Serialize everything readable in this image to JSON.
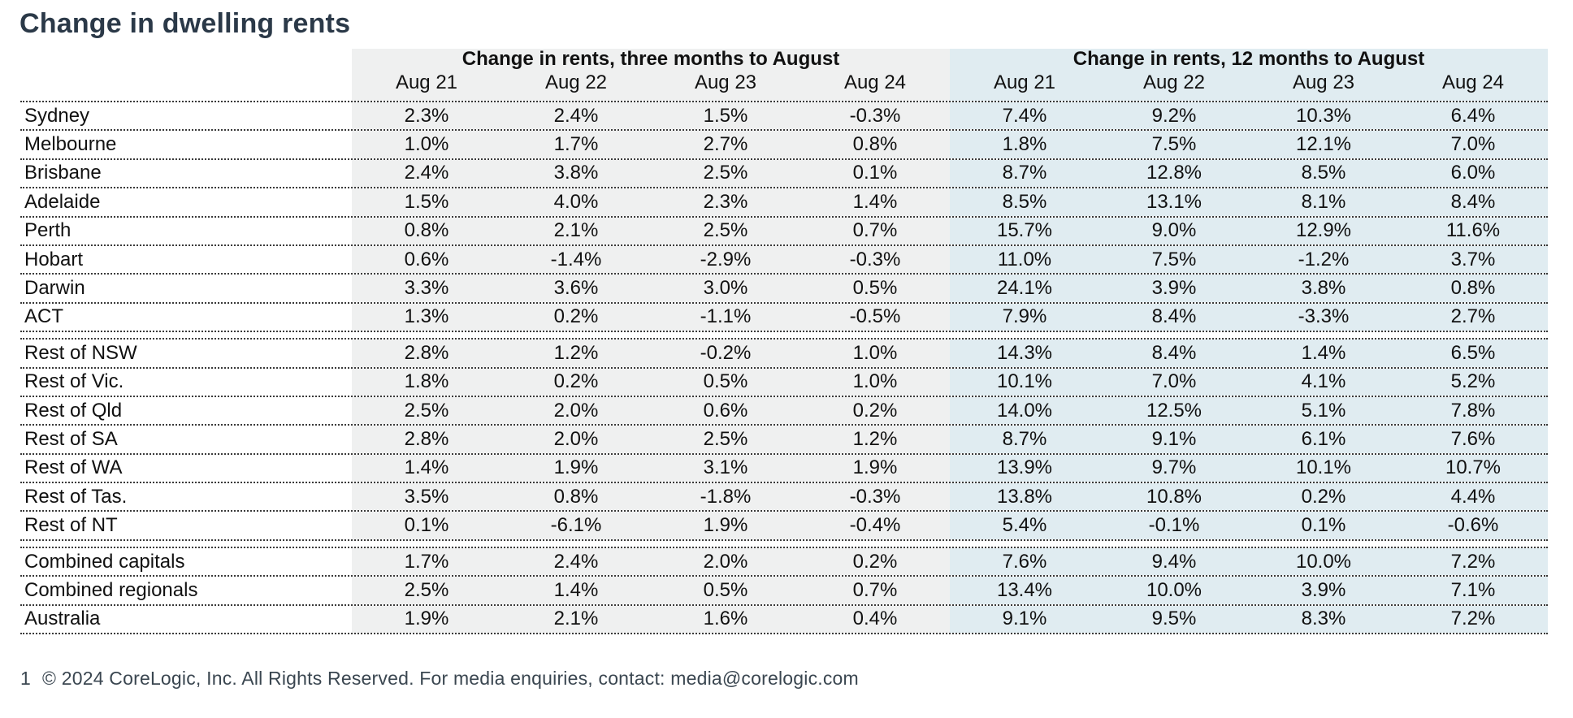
{
  "page": {
    "title": "Change in dwelling rents",
    "footer": {
      "page_number": "1",
      "copyright": "© 2024 CoreLogic, Inc. All Rights Reserved. For media enquiries, contact: media@corelogic.com"
    }
  },
  "colors": {
    "three_month_bg": "#EFF0F0",
    "twelve_month_bg": "#E0ECF1",
    "title_text": "#2B3948",
    "footer_text": "#3A4650"
  },
  "chart_data": {
    "type": "table",
    "title": "Change in dwelling rents",
    "column_groups": [
      {
        "label": "Change in rents, three months to August",
        "columns": [
          "Aug 21",
          "Aug 22",
          "Aug 23",
          "Aug 24"
        ]
      },
      {
        "label": "Change in rents, 12 months to August",
        "columns": [
          "Aug 21",
          "Aug 22",
          "Aug 23",
          "Aug 24"
        ]
      }
    ],
    "row_groups": [
      {
        "rows": [
          {
            "label": "Sydney",
            "values": [
              "2.3%",
              "2.4%",
              "1.5%",
              "-0.3%",
              "7.4%",
              "9.2%",
              "10.3%",
              "6.4%"
            ]
          },
          {
            "label": "Melbourne",
            "values": [
              "1.0%",
              "1.7%",
              "2.7%",
              "0.8%",
              "1.8%",
              "7.5%",
              "12.1%",
              "7.0%"
            ]
          },
          {
            "label": "Brisbane",
            "values": [
              "2.4%",
              "3.8%",
              "2.5%",
              "0.1%",
              "8.7%",
              "12.8%",
              "8.5%",
              "6.0%"
            ]
          },
          {
            "label": "Adelaide",
            "values": [
              "1.5%",
              "4.0%",
              "2.3%",
              "1.4%",
              "8.5%",
              "13.1%",
              "8.1%",
              "8.4%"
            ]
          },
          {
            "label": "Perth",
            "values": [
              "0.8%",
              "2.1%",
              "2.5%",
              "0.7%",
              "15.7%",
              "9.0%",
              "12.9%",
              "11.6%"
            ]
          },
          {
            "label": "Hobart",
            "values": [
              "0.6%",
              "-1.4%",
              "-2.9%",
              "-0.3%",
              "11.0%",
              "7.5%",
              "-1.2%",
              "3.7%"
            ]
          },
          {
            "label": "Darwin",
            "values": [
              "3.3%",
              "3.6%",
              "3.0%",
              "0.5%",
              "24.1%",
              "3.9%",
              "3.8%",
              "0.8%"
            ]
          },
          {
            "label": "ACT",
            "values": [
              "1.3%",
              "0.2%",
              "-1.1%",
              "-0.5%",
              "7.9%",
              "8.4%",
              "-3.3%",
              "2.7%"
            ]
          }
        ]
      },
      {
        "rows": [
          {
            "label": "Rest of NSW",
            "values": [
              "2.8%",
              "1.2%",
              "-0.2%",
              "1.0%",
              "14.3%",
              "8.4%",
              "1.4%",
              "6.5%"
            ]
          },
          {
            "label": "Rest of Vic.",
            "values": [
              "1.8%",
              "0.2%",
              "0.5%",
              "1.0%",
              "10.1%",
              "7.0%",
              "4.1%",
              "5.2%"
            ]
          },
          {
            "label": "Rest of Qld",
            "values": [
              "2.5%",
              "2.0%",
              "0.6%",
              "0.2%",
              "14.0%",
              "12.5%",
              "5.1%",
              "7.8%"
            ]
          },
          {
            "label": "Rest of SA",
            "values": [
              "2.8%",
              "2.0%",
              "2.5%",
              "1.2%",
              "8.7%",
              "9.1%",
              "6.1%",
              "7.6%"
            ]
          },
          {
            "label": "Rest of WA",
            "values": [
              "1.4%",
              "1.9%",
              "3.1%",
              "1.9%",
              "13.9%",
              "9.7%",
              "10.1%",
              "10.7%"
            ]
          },
          {
            "label": "Rest of Tas.",
            "values": [
              "3.5%",
              "0.8%",
              "-1.8%",
              "-0.3%",
              "13.8%",
              "10.8%",
              "0.2%",
              "4.4%"
            ]
          },
          {
            "label": "Rest of NT",
            "values": [
              "0.1%",
              "-6.1%",
              "1.9%",
              "-0.4%",
              "5.4%",
              "-0.1%",
              "0.1%",
              "-0.6%"
            ]
          }
        ]
      },
      {
        "rows": [
          {
            "label": "Combined capitals",
            "values": [
              "1.7%",
              "2.4%",
              "2.0%",
              "0.2%",
              "7.6%",
              "9.4%",
              "10.0%",
              "7.2%"
            ]
          },
          {
            "label": "Combined regionals",
            "values": [
              "2.5%",
              "1.4%",
              "0.5%",
              "0.7%",
              "13.4%",
              "10.0%",
              "3.9%",
              "7.1%"
            ]
          },
          {
            "label": "Australia",
            "values": [
              "1.9%",
              "2.1%",
              "1.6%",
              "0.4%",
              "9.1%",
              "9.5%",
              "8.3%",
              "7.2%"
            ]
          }
        ]
      }
    ]
  }
}
